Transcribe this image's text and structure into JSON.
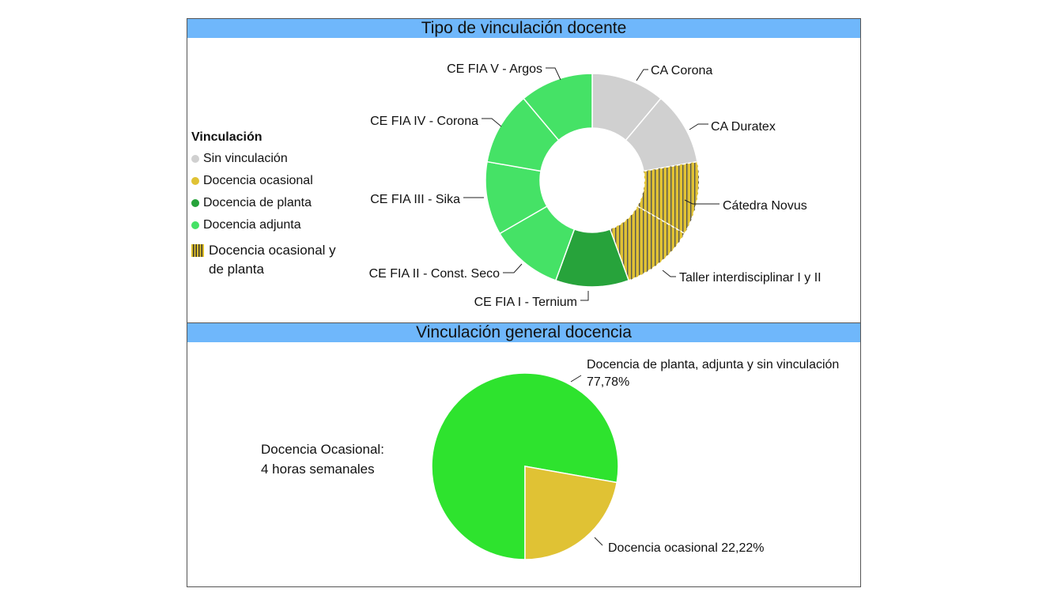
{
  "colors": {
    "sin_vinculacion": "#d0d0d0",
    "ocasional": "#e0c234",
    "planta": "#27a33b",
    "adjunta": "#45e266",
    "pie_green": "#2ee32e",
    "pie_yellow": "#e0c234",
    "title_bar": "#6fb7fb"
  },
  "top_title": "Tipo de vinculación docente",
  "bottom_title": "Vinculación general docencia",
  "legend": {
    "title": "Vinculación",
    "items": [
      {
        "label": "Sin vinculación",
        "marker": "dot",
        "color_key": "sin_vinculacion"
      },
      {
        "label": "Docencia ocasional",
        "marker": "dot",
        "color_key": "ocasional"
      },
      {
        "label": "Docencia de planta",
        "marker": "dot",
        "color_key": "planta"
      },
      {
        "label": "Docencia adjunta",
        "marker": "dot",
        "color_key": "adjunta"
      }
    ],
    "striped_item": {
      "label_line1": "Docencia ocasional y",
      "label_line2": "de planta"
    }
  },
  "note": {
    "line1": "Docencia Ocasional:",
    "line2": "4 horas semanales"
  },
  "chart_data": [
    {
      "type": "donut",
      "title": "Tipo de vinculación docente",
      "slices": [
        {
          "label": "CA Corona",
          "value": 1,
          "category": "sin_vinculacion",
          "pattern": "solid"
        },
        {
          "label": "CA Duratex",
          "value": 1,
          "category": "sin_vinculacion",
          "pattern": "solid"
        },
        {
          "label": "Cátedra Novus",
          "value": 1,
          "category": "ocasional",
          "pattern": "striped"
        },
        {
          "label": "Taller interdisciplinar I y II",
          "value": 1,
          "category": "ocasional",
          "pattern": "striped"
        },
        {
          "label": "CE FIA I - Ternium",
          "value": 1,
          "category": "planta",
          "pattern": "solid"
        },
        {
          "label": "CE FIA II - Const. Seco",
          "value": 1,
          "category": "adjunta",
          "pattern": "solid"
        },
        {
          "label": "CE FIA III - Sika",
          "value": 1,
          "category": "adjunta",
          "pattern": "solid"
        },
        {
          "label": "CE FIA IV - Corona",
          "value": 1,
          "category": "adjunta",
          "pattern": "solid"
        },
        {
          "label": "CE FIA V - Argos",
          "value": 1,
          "category": "adjunta",
          "pattern": "solid"
        }
      ]
    },
    {
      "type": "pie",
      "title": "Vinculación general docencia",
      "slices": [
        {
          "label": "Docencia de planta, adjunta y sin vinculación",
          "value_text": "77,78%",
          "value": 77.78,
          "color_key": "pie_green"
        },
        {
          "label": "Docencia ocasional",
          "value_text": "22,22%",
          "value": 22.22,
          "color_key": "pie_yellow"
        }
      ]
    }
  ]
}
